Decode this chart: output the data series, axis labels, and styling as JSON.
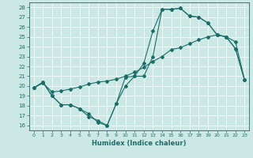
{
  "xlabel": "Humidex (Indice chaleur)",
  "bg_color": "#cce8e4",
  "line_color": "#1a6e6a",
  "grid_color": "#ffffff",
  "xlim": [
    -0.5,
    23.5
  ],
  "ylim": [
    15.5,
    28.5
  ],
  "yticks": [
    16,
    17,
    18,
    19,
    20,
    21,
    22,
    23,
    24,
    25,
    26,
    27,
    28
  ],
  "xticks": [
    0,
    1,
    2,
    3,
    4,
    5,
    6,
    7,
    8,
    9,
    10,
    11,
    12,
    13,
    14,
    15,
    16,
    17,
    18,
    19,
    20,
    21,
    22,
    23
  ],
  "line1_x": [
    0,
    1,
    2,
    3,
    4,
    5,
    6,
    7,
    8,
    9,
    10,
    11,
    12,
    13,
    14,
    15,
    16,
    17,
    18,
    19,
    20,
    21,
    22,
    23
  ],
  "line1_y": [
    19.8,
    20.4,
    19.0,
    18.1,
    18.1,
    17.7,
    17.2,
    16.3,
    16.0,
    18.2,
    20.9,
    21.0,
    21.0,
    23.0,
    27.8,
    27.8,
    27.9,
    27.1,
    27.0,
    26.4,
    25.2,
    25.0,
    23.8,
    20.6
  ],
  "line2_x": [
    0,
    1,
    2,
    3,
    4,
    5,
    6,
    7,
    8,
    9,
    10,
    11,
    12,
    13,
    14,
    15,
    16,
    17,
    18,
    19,
    20,
    21,
    22,
    23
  ],
  "line2_y": [
    19.8,
    20.3,
    19.4,
    19.5,
    19.7,
    19.9,
    20.2,
    20.4,
    20.5,
    20.7,
    21.0,
    21.4,
    21.9,
    22.5,
    23.0,
    23.7,
    23.9,
    24.3,
    24.7,
    25.0,
    25.2,
    25.0,
    24.5,
    20.6
  ],
  "line3_x": [
    0,
    1,
    2,
    3,
    4,
    5,
    6,
    7,
    8,
    9,
    10,
    11,
    12,
    13,
    14,
    15,
    16,
    17,
    18,
    19,
    20,
    21,
    22,
    23
  ],
  "line3_y": [
    19.8,
    20.4,
    19.0,
    18.1,
    18.1,
    17.7,
    16.9,
    16.5,
    16.0,
    18.2,
    20.0,
    21.0,
    22.3,
    25.6,
    27.8,
    27.8,
    27.9,
    27.1,
    27.0,
    26.4,
    25.2,
    25.0,
    23.8,
    20.6
  ],
  "marker": "D",
  "markersize": 2.0,
  "linewidth": 0.8,
  "ylabel_fontsize": 5,
  "xlabel_fontsize": 6,
  "tick_labelsize": 4.5
}
